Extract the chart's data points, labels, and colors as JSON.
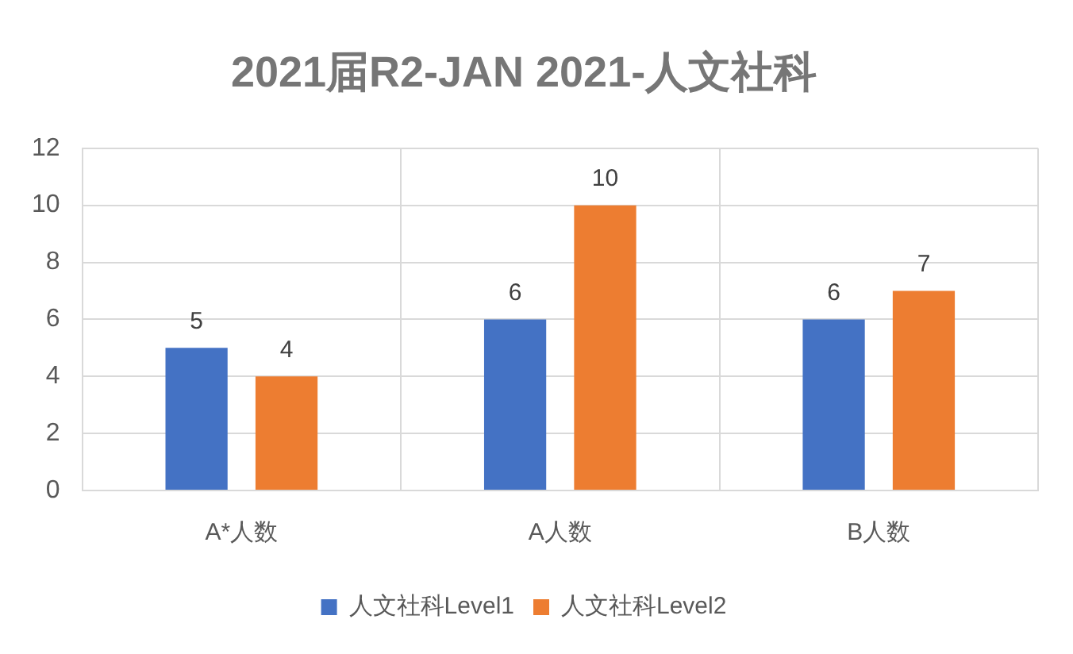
{
  "chart_data": {
    "type": "bar",
    "title": "2021届R2-JAN 2021-人文社科",
    "categories": [
      "A*人数",
      "A人数",
      "B人数"
    ],
    "series": [
      {
        "name": "人文社科Level1",
        "color": "#4472c4",
        "values": [
          5,
          6,
          6
        ]
      },
      {
        "name": "人文社科Level2",
        "color": "#ed7d31",
        "values": [
          4,
          10,
          7
        ]
      }
    ],
    "ylim": [
      0,
      12
    ],
    "yticks": [
      0,
      2,
      4,
      6,
      8,
      10,
      12
    ],
    "grid": true,
    "legend": "bottom",
    "data_labels": true
  }
}
